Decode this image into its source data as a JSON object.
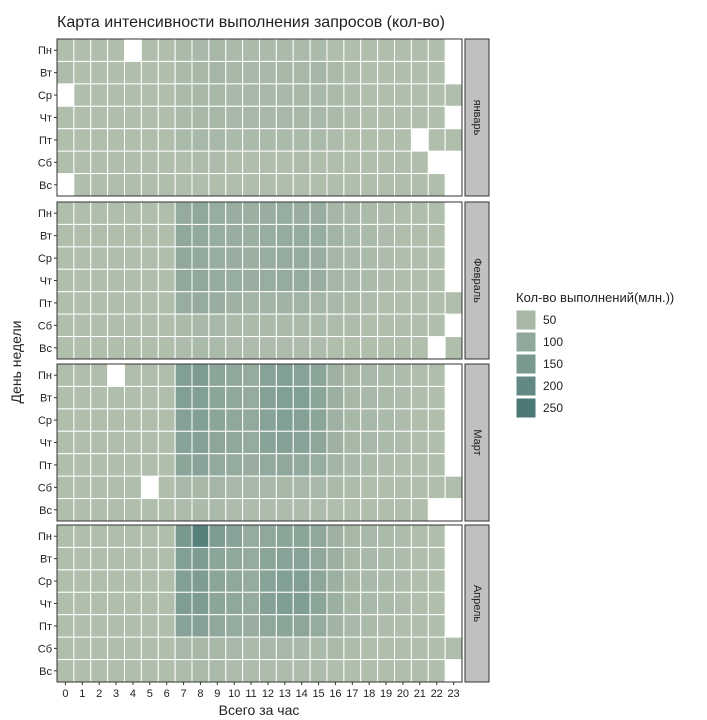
{
  "chart_data": {
    "type": "heatmap",
    "title": "Карта интенсивности выполнения запросов (кол-во)",
    "xlabel": "Всего за час",
    "ylabel": "День недели",
    "x": [
      "0",
      "1",
      "2",
      "3",
      "4",
      "5",
      "6",
      "7",
      "8",
      "9",
      "10",
      "11",
      "12",
      "13",
      "14",
      "15",
      "16",
      "17",
      "18",
      "19",
      "20",
      "21",
      "22",
      "23"
    ],
    "y": [
      "Пн",
      "Вт",
      "Ср",
      "Чт",
      "Пт",
      "Сб",
      "Вс"
    ],
    "legend": {
      "title": "Кол-во выполнений(млн.))",
      "breaks": [
        50,
        100,
        150,
        200,
        250
      ],
      "range": [
        10,
        280
      ],
      "color_low": "#b9c4b1",
      "color_high": "#3e7070",
      "placement": "right"
    },
    "panels": [
      {
        "label": "январь",
        "values": [
          [
            30,
            30,
            30,
            30,
            null,
            30,
            30,
            40,
            45,
            50,
            40,
            40,
            40,
            40,
            40,
            40,
            30,
            30,
            30,
            30,
            30,
            30,
            30,
            null
          ],
          [
            35,
            30,
            30,
            30,
            30,
            30,
            30,
            40,
            50,
            55,
            50,
            45,
            45,
            50,
            50,
            55,
            40,
            35,
            30,
            30,
            30,
            30,
            30,
            null
          ],
          [
            null,
            30,
            30,
            30,
            30,
            30,
            30,
            40,
            50,
            50,
            45,
            45,
            45,
            45,
            50,
            45,
            40,
            35,
            30,
            30,
            30,
            30,
            30,
            30
          ],
          [
            30,
            30,
            30,
            30,
            30,
            30,
            30,
            40,
            50,
            50,
            45,
            45,
            45,
            45,
            50,
            45,
            40,
            35,
            30,
            30,
            30,
            30,
            30,
            null
          ],
          [
            30,
            30,
            30,
            30,
            30,
            30,
            30,
            40,
            45,
            45,
            40,
            40,
            40,
            40,
            40,
            40,
            35,
            30,
            30,
            30,
            30,
            null,
            30,
            30
          ],
          [
            30,
            30,
            30,
            30,
            30,
            30,
            30,
            30,
            35,
            35,
            30,
            30,
            30,
            30,
            35,
            30,
            30,
            30,
            30,
            30,
            30,
            30,
            null,
            null
          ],
          [
            null,
            30,
            30,
            30,
            30,
            30,
            30,
            30,
            30,
            30,
            30,
            30,
            30,
            30,
            30,
            30,
            30,
            30,
            30,
            30,
            30,
            30,
            30,
            null
          ]
        ]
      },
      {
        "label": "Февраль",
        "values": [
          [
            30,
            30,
            30,
            30,
            30,
            30,
            30,
            90,
            100,
            85,
            80,
            75,
            80,
            85,
            80,
            80,
            55,
            45,
            40,
            35,
            30,
            30,
            30,
            null
          ],
          [
            30,
            30,
            30,
            30,
            30,
            30,
            30,
            100,
            95,
            85,
            80,
            75,
            85,
            90,
            90,
            85,
            60,
            45,
            40,
            35,
            30,
            30,
            30,
            null
          ],
          [
            30,
            30,
            30,
            30,
            30,
            30,
            30,
            100,
            95,
            85,
            80,
            75,
            85,
            90,
            90,
            80,
            55,
            45,
            40,
            35,
            30,
            30,
            30,
            null
          ],
          [
            30,
            30,
            30,
            30,
            30,
            30,
            30,
            100,
            100,
            90,
            85,
            80,
            85,
            90,
            90,
            80,
            55,
            45,
            40,
            35,
            30,
            30,
            30,
            null
          ],
          [
            30,
            30,
            30,
            30,
            30,
            30,
            30,
            85,
            90,
            80,
            70,
            60,
            60,
            65,
            60,
            55,
            45,
            40,
            35,
            30,
            30,
            30,
            30,
            30
          ],
          [
            30,
            30,
            30,
            30,
            30,
            30,
            30,
            40,
            45,
            45,
            40,
            40,
            40,
            40,
            40,
            40,
            35,
            35,
            30,
            30,
            30,
            30,
            30,
            null
          ],
          [
            30,
            30,
            30,
            30,
            30,
            30,
            30,
            35,
            40,
            40,
            35,
            35,
            35,
            35,
            35,
            35,
            30,
            30,
            30,
            30,
            30,
            30,
            null,
            30
          ]
        ]
      },
      {
        "label": "Март",
        "values": [
          [
            30,
            30,
            30,
            null,
            30,
            30,
            30,
            130,
            140,
            110,
            100,
            90,
            120,
            130,
            120,
            110,
            70,
            50,
            45,
            40,
            35,
            30,
            30,
            null
          ],
          [
            30,
            30,
            30,
            30,
            30,
            30,
            30,
            130,
            130,
            110,
            100,
            90,
            125,
            130,
            130,
            110,
            75,
            50,
            45,
            40,
            35,
            30,
            30,
            null
          ],
          [
            30,
            30,
            30,
            30,
            30,
            30,
            30,
            125,
            130,
            110,
            100,
            95,
            120,
            130,
            125,
            110,
            70,
            50,
            45,
            40,
            35,
            30,
            30,
            null
          ],
          [
            30,
            30,
            30,
            30,
            30,
            30,
            30,
            120,
            125,
            105,
            100,
            90,
            115,
            125,
            120,
            105,
            70,
            50,
            45,
            40,
            35,
            30,
            30,
            null
          ],
          [
            30,
            30,
            30,
            30,
            30,
            30,
            30,
            110,
            115,
            95,
            90,
            80,
            95,
            100,
            95,
            85,
            60,
            45,
            40,
            35,
            30,
            30,
            30,
            null
          ],
          [
            30,
            30,
            30,
            30,
            30,
            null,
            30,
            45,
            50,
            55,
            45,
            45,
            45,
            50,
            45,
            45,
            40,
            35,
            30,
            30,
            30,
            30,
            30,
            30
          ],
          [
            30,
            30,
            30,
            30,
            30,
            30,
            30,
            35,
            40,
            40,
            35,
            35,
            35,
            35,
            35,
            35,
            30,
            30,
            30,
            30,
            30,
            30,
            null,
            null
          ]
        ]
      },
      {
        "label": "Апрель",
        "values": [
          [
            30,
            30,
            30,
            30,
            30,
            30,
            30,
            150,
            230,
            140,
            120,
            90,
            100,
            110,
            110,
            100,
            70,
            50,
            45,
            40,
            35,
            30,
            30,
            null
          ],
          [
            30,
            30,
            30,
            30,
            30,
            30,
            30,
            130,
            140,
            110,
            100,
            90,
            110,
            120,
            120,
            100,
            75,
            50,
            45,
            40,
            35,
            30,
            30,
            null
          ],
          [
            30,
            30,
            30,
            30,
            30,
            30,
            30,
            130,
            140,
            110,
            100,
            90,
            120,
            130,
            130,
            105,
            75,
            50,
            45,
            40,
            35,
            30,
            30,
            null
          ],
          [
            30,
            30,
            30,
            30,
            30,
            30,
            30,
            135,
            140,
            110,
            100,
            90,
            125,
            135,
            135,
            110,
            75,
            50,
            45,
            40,
            35,
            30,
            30,
            null
          ],
          [
            30,
            30,
            30,
            30,
            30,
            30,
            30,
            120,
            125,
            100,
            90,
            80,
            100,
            110,
            105,
            90,
            65,
            45,
            40,
            35,
            30,
            30,
            30,
            null
          ],
          [
            30,
            30,
            30,
            30,
            30,
            30,
            30,
            45,
            50,
            50,
            45,
            40,
            45,
            45,
            45,
            40,
            40,
            35,
            30,
            30,
            30,
            30,
            30,
            30
          ],
          [
            30,
            30,
            30,
            30,
            30,
            30,
            30,
            35,
            40,
            40,
            35,
            35,
            35,
            35,
            35,
            35,
            30,
            30,
            30,
            30,
            30,
            30,
            30,
            null
          ]
        ]
      }
    ]
  }
}
